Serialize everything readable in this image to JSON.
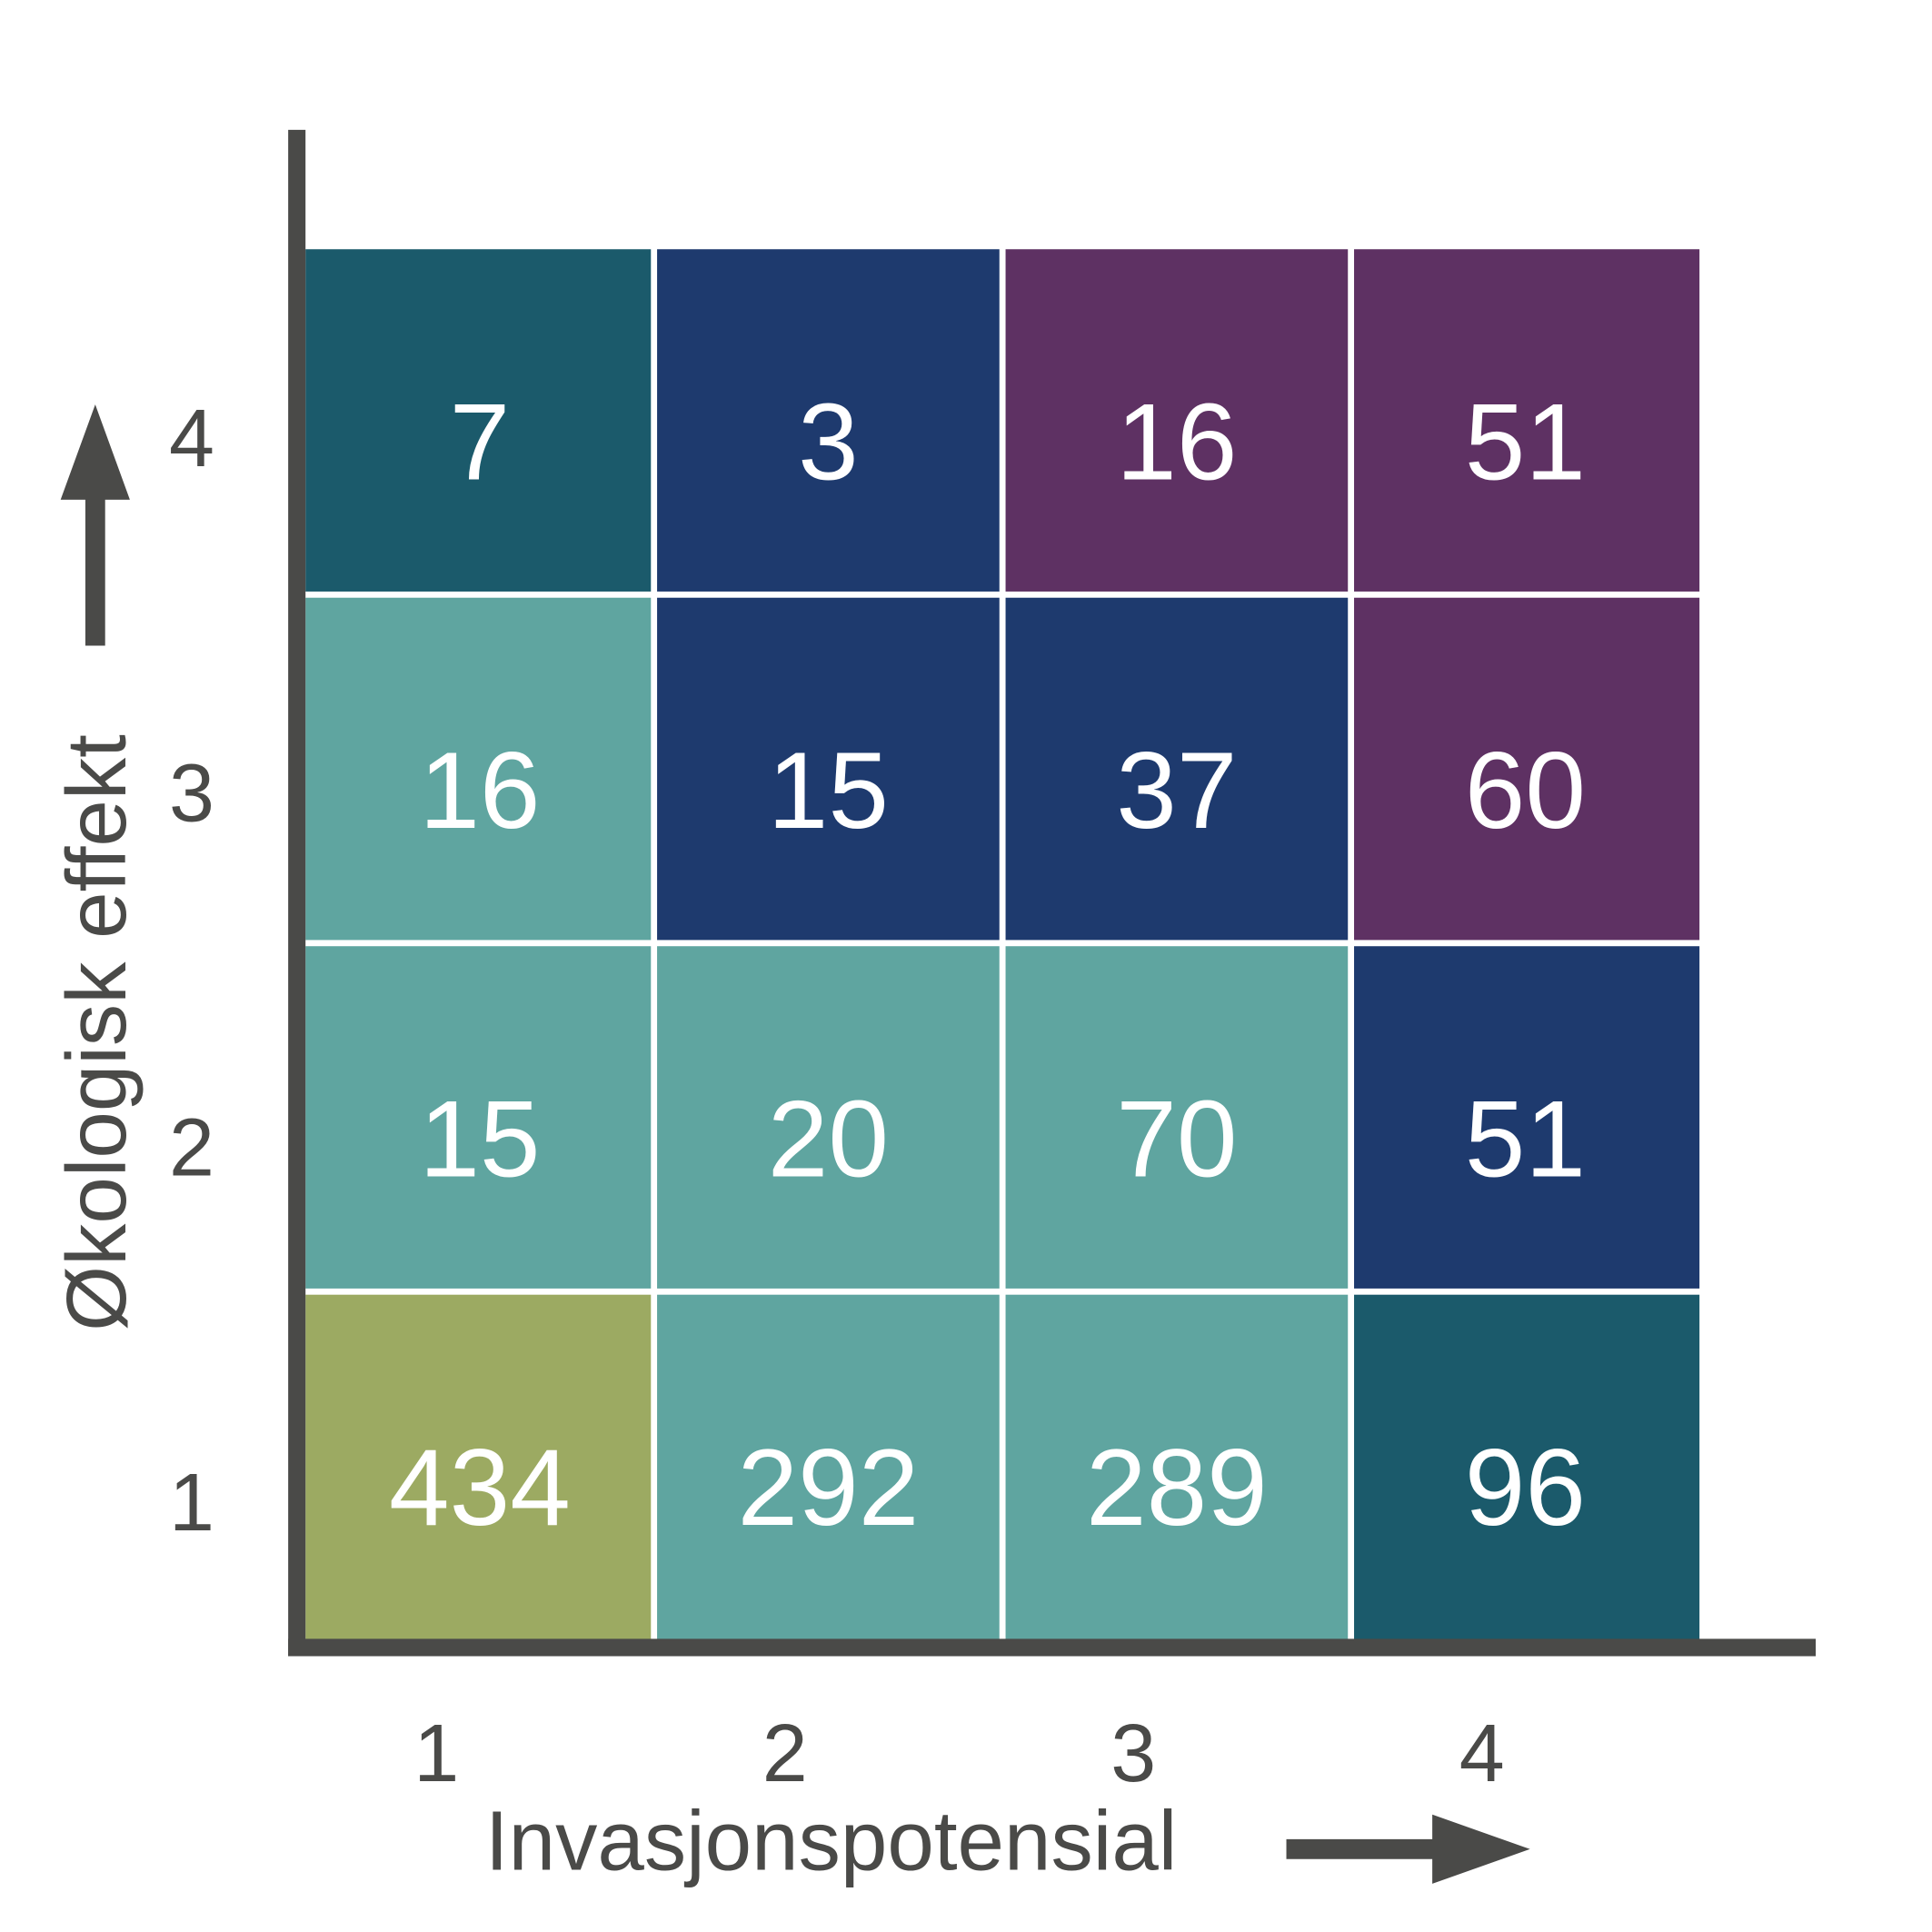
{
  "chart_data": {
    "type": "heatmap",
    "xlabel": "Invasjonspotensial",
    "ylabel": "Økologisk effekt",
    "xcategories": [
      "1",
      "2",
      "3",
      "4"
    ],
    "ycategories": [
      "1",
      "2",
      "3",
      "4"
    ],
    "values": [
      [
        434,
        292,
        289,
        96
      ],
      [
        15,
        20,
        70,
        51
      ],
      [
        16,
        15,
        37,
        60
      ],
      [
        7,
        3,
        16,
        51
      ]
    ],
    "colors": [
      [
        "#9caa62",
        "#5fa5a0",
        "#5fa5a0",
        "#1b5a6b"
      ],
      [
        "#5fa5a0",
        "#5fa5a0",
        "#5fa5a0",
        "#1e3a6e"
      ],
      [
        "#5fa5a0",
        "#1e3a6e",
        "#1e3a6e",
        "#5e3163"
      ],
      [
        "#1b5a6b",
        "#1e3a6e",
        "#5e3163",
        "#5e3163"
      ]
    ]
  }
}
